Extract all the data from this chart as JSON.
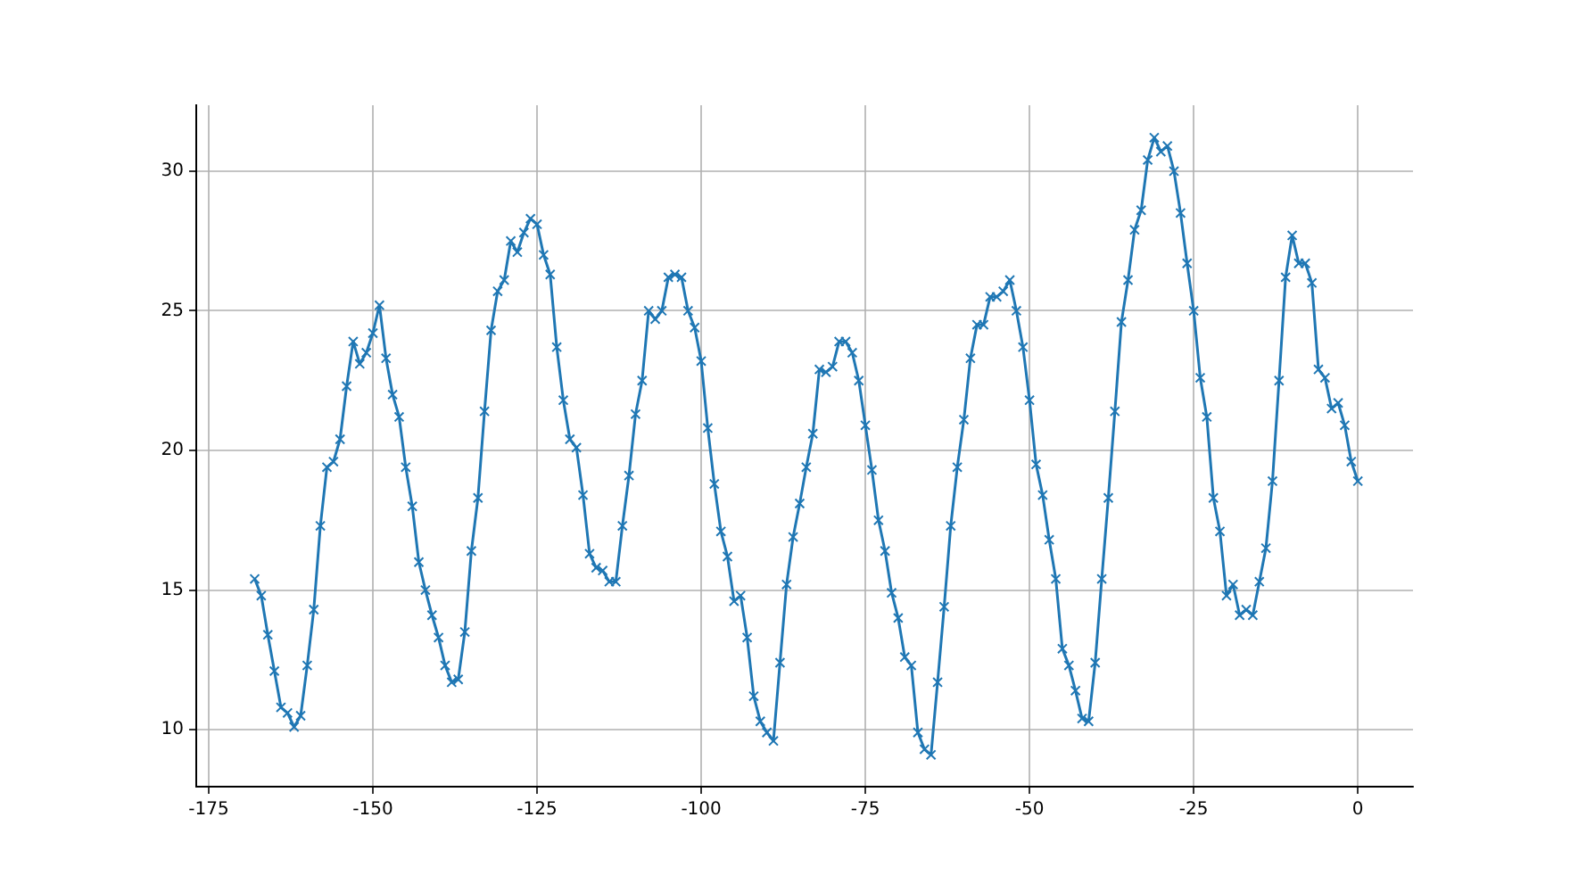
{
  "chart_data": {
    "type": "line",
    "marker": "cross",
    "grid": true,
    "legend": false,
    "x": [
      -168,
      -167,
      -166,
      -165,
      -164,
      -163,
      -162,
      -161,
      -160,
      -159,
      -158,
      -157,
      -156,
      -155,
      -154,
      -153,
      -152,
      -151,
      -150,
      -149,
      -148,
      -147,
      -146,
      -145,
      -144,
      -143,
      -142,
      -141,
      -140,
      -139,
      -138,
      -137,
      -136,
      -135,
      -134,
      -133,
      -132,
      -131,
      -130,
      -129,
      -128,
      -127,
      -126,
      -125,
      -124,
      -123,
      -122,
      -121,
      -120,
      -119,
      -118,
      -117,
      -116,
      -115,
      -114,
      -113,
      -112,
      -111,
      -110,
      -109,
      -108,
      -107,
      -106,
      -105,
      -104,
      -103,
      -102,
      -101,
      -100,
      -99,
      -98,
      -97,
      -96,
      -95,
      -94,
      -93,
      -92,
      -91,
      -90,
      -89,
      -88,
      -87,
      -86,
      -85,
      -84,
      -83,
      -82,
      -81,
      -80,
      -79,
      -78,
      -77,
      -76,
      -75,
      -74,
      -73,
      -72,
      -71,
      -70,
      -69,
      -68,
      -67,
      -66,
      -65,
      -64,
      -63,
      -62,
      -61,
      -60,
      -59,
      -58,
      -57,
      -56,
      -55,
      -54,
      -53,
      -52,
      -51,
      -50,
      -49,
      -48,
      -47,
      -46,
      -45,
      -44,
      -43,
      -42,
      -41,
      -40,
      -39,
      -38,
      -37,
      -36,
      -35,
      -34,
      -33,
      -32,
      -31,
      -30,
      -29,
      -28,
      -27,
      -26,
      -25,
      -24,
      -23,
      -22,
      -21,
      -20,
      -19,
      -18,
      -17,
      -16,
      -15,
      -14,
      -13,
      -12,
      -11,
      -10,
      -9,
      -8,
      -7,
      -6,
      -5,
      -4,
      -3,
      -2,
      -1,
      0
    ],
    "series": [
      {
        "color": "#1f77b4",
        "values": [
          15.4,
          14.8,
          13.4,
          12.1,
          10.8,
          10.6,
          10.1,
          10.5,
          12.3,
          14.3,
          17.3,
          19.4,
          19.6,
          20.4,
          22.3,
          23.9,
          23.1,
          23.5,
          24.2,
          25.2,
          23.3,
          22.0,
          21.2,
          19.4,
          18.0,
          16.0,
          15.0,
          14.1,
          13.3,
          12.3,
          11.7,
          11.8,
          13.5,
          16.4,
          18.3,
          21.4,
          24.3,
          25.7,
          26.1,
          27.5,
          27.1,
          27.8,
          28.3,
          28.1,
          27.0,
          26.3,
          23.7,
          21.8,
          20.4,
          20.1,
          18.4,
          16.3,
          15.8,
          15.7,
          15.3,
          15.3,
          17.3,
          19.1,
          21.3,
          22.5,
          25.0,
          24.7,
          25.0,
          26.2,
          26.3,
          26.2,
          25.0,
          24.4,
          23.2,
          20.8,
          18.8,
          17.1,
          16.2,
          14.6,
          14.8,
          13.3,
          11.2,
          10.3,
          9.9,
          9.6,
          12.4,
          15.2,
          16.9,
          18.1,
          19.4,
          20.6,
          22.9,
          22.8,
          23.0,
          23.9,
          23.9,
          23.5,
          22.5,
          20.9,
          19.3,
          17.5,
          16.4,
          14.9,
          14.0,
          12.6,
          12.3,
          9.9,
          9.3,
          9.1,
          11.7,
          14.4,
          17.3,
          19.4,
          21.1,
          23.3,
          24.5,
          24.5,
          25.5,
          25.5,
          25.7,
          26.1,
          25.0,
          23.7,
          21.8,
          19.5,
          18.4,
          16.8,
          15.4,
          12.9,
          12.3,
          11.4,
          10.4,
          10.3,
          12.4,
          15.4,
          18.3,
          21.4,
          24.6,
          26.1,
          27.9,
          28.6,
          30.4,
          31.2,
          30.7,
          30.9,
          30.0,
          28.5,
          26.7,
          25.0,
          22.6,
          21.2,
          18.3,
          17.1,
          14.8,
          15.2,
          14.1,
          14.3,
          14.1,
          15.3,
          16.5,
          18.9,
          22.5,
          26.2,
          27.7,
          26.7,
          26.7,
          26.0,
          22.9,
          22.6,
          21.5,
          21.7,
          20.9,
          19.6,
          18.9
        ]
      }
    ],
    "xlim": [
      -176.9,
      8.4
    ],
    "ylim": [
      7.96,
      32.36
    ],
    "xticks": [
      -175,
      -150,
      -125,
      -100,
      -75,
      -50,
      -25,
      0
    ],
    "yticks": [
      10,
      15,
      20,
      25,
      30
    ]
  }
}
